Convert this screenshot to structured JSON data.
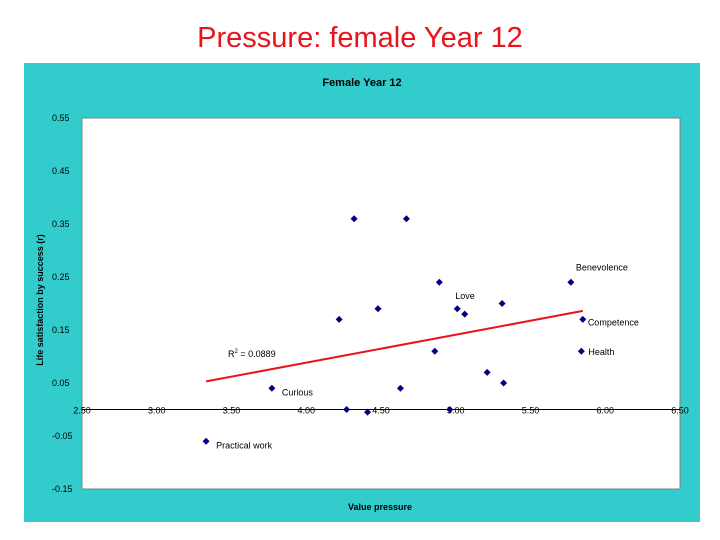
{
  "slide_title": "Pressure: female Year 12",
  "colors": {
    "frame_bg": "#33cccc",
    "plot_bg": "#ffffff",
    "point": "#00007f",
    "trendline": "#e8141c",
    "title": "#e8141c"
  },
  "chart_data": {
    "type": "scatter",
    "title": "Female Year 12",
    "xlabel": "Value pressure",
    "ylabel": "Life satisfaction by success (r)",
    "xlim": [
      2.5,
      6.5
    ],
    "ylim": [
      -0.15,
      0.55
    ],
    "x_ticks": [
      "2.50",
      "3.00",
      "3.50",
      "4.00",
      "4.50",
      "5.00",
      "5.50",
      "6.00",
      "6.50"
    ],
    "y_ticks": [
      "0.55",
      "0.45",
      "0.35",
      "0.25",
      "0.15",
      "0.05",
      "-0.05",
      "-0.15"
    ],
    "grid": false,
    "legend": "none",
    "points": [
      {
        "x": 3.33,
        "y": -0.06,
        "label": "Practical work"
      },
      {
        "x": 3.77,
        "y": 0.04,
        "label": "Curious"
      },
      {
        "x": 4.22,
        "y": 0.17,
        "label": ""
      },
      {
        "x": 4.27,
        "y": 0.0,
        "label": ""
      },
      {
        "x": 4.32,
        "y": 0.36,
        "label": ""
      },
      {
        "x": 4.41,
        "y": -0.005,
        "label": ""
      },
      {
        "x": 4.48,
        "y": 0.19,
        "label": ""
      },
      {
        "x": 4.63,
        "y": 0.04,
        "label": ""
      },
      {
        "x": 4.67,
        "y": 0.36,
        "label": ""
      },
      {
        "x": 4.86,
        "y": 0.11,
        "label": ""
      },
      {
        "x": 4.89,
        "y": 0.24,
        "label": ""
      },
      {
        "x": 4.96,
        "y": 0.0,
        "label": ""
      },
      {
        "x": 5.01,
        "y": 0.19,
        "label": "Love"
      },
      {
        "x": 5.06,
        "y": 0.18,
        "label": ""
      },
      {
        "x": 5.21,
        "y": 0.07,
        "label": ""
      },
      {
        "x": 5.31,
        "y": 0.2,
        "label": ""
      },
      {
        "x": 5.32,
        "y": 0.05,
        "label": ""
      },
      {
        "x": 5.77,
        "y": 0.24,
        "label": "Benevolence"
      },
      {
        "x": 5.85,
        "y": 0.17,
        "label": "Competence"
      },
      {
        "x": 5.84,
        "y": 0.11,
        "label": "Health"
      }
    ],
    "trendline": {
      "x": [
        3.33,
        5.85
      ],
      "y": [
        0.053,
        0.186
      ]
    },
    "r_squared_prefix": "R",
    "r_squared_sup": "2",
    "r_squared_value": " = 0.0889"
  }
}
